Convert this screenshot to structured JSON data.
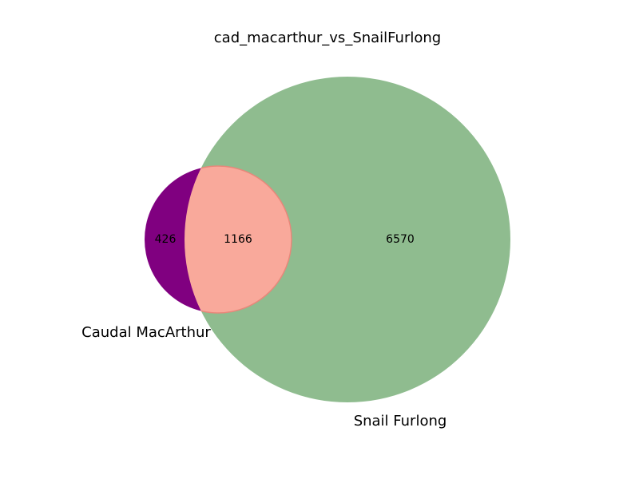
{
  "chart_data": {
    "type": "venn",
    "title": "cad_macarthur_vs_SnailFurlong",
    "sets": [
      {
        "name": "Caudal MacArthur",
        "color": "#800080",
        "size": 1592
      },
      {
        "name": "Snail Furlong",
        "color": "#8fbc8f",
        "size": 7736
      }
    ],
    "regions": [
      {
        "label": "426",
        "sets": [
          "Caudal MacArthur"
        ],
        "value": 426,
        "color": "#800080"
      },
      {
        "label": "1166",
        "sets": [
          "Caudal MacArthur",
          "Snail Furlong"
        ],
        "value": 1166,
        "color": "#f9a99b"
      },
      {
        "label": "6570",
        "sets": [
          "Snail Furlong"
        ],
        "value": 6570,
        "color": "#8fbc8f"
      }
    ]
  }
}
